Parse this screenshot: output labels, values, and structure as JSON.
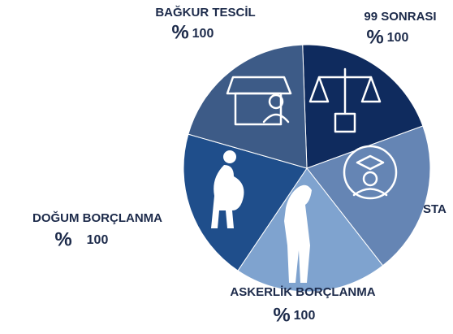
{
  "segments": [
    {
      "label": "99 SONRASI",
      "symbol": "%",
      "amount": "100"
    },
    {
      "label": "STA"
    },
    {
      "label": "ASKERLİK BORÇLANMA",
      "symbol": "%",
      "amount": "100"
    },
    {
      "label": "DOĞUM BORÇLANMA",
      "symbol": "%",
      "amount": "100"
    },
    {
      "label": "BAĞKUR TESCİL",
      "symbol": "%",
      "amount": "100"
    }
  ]
}
